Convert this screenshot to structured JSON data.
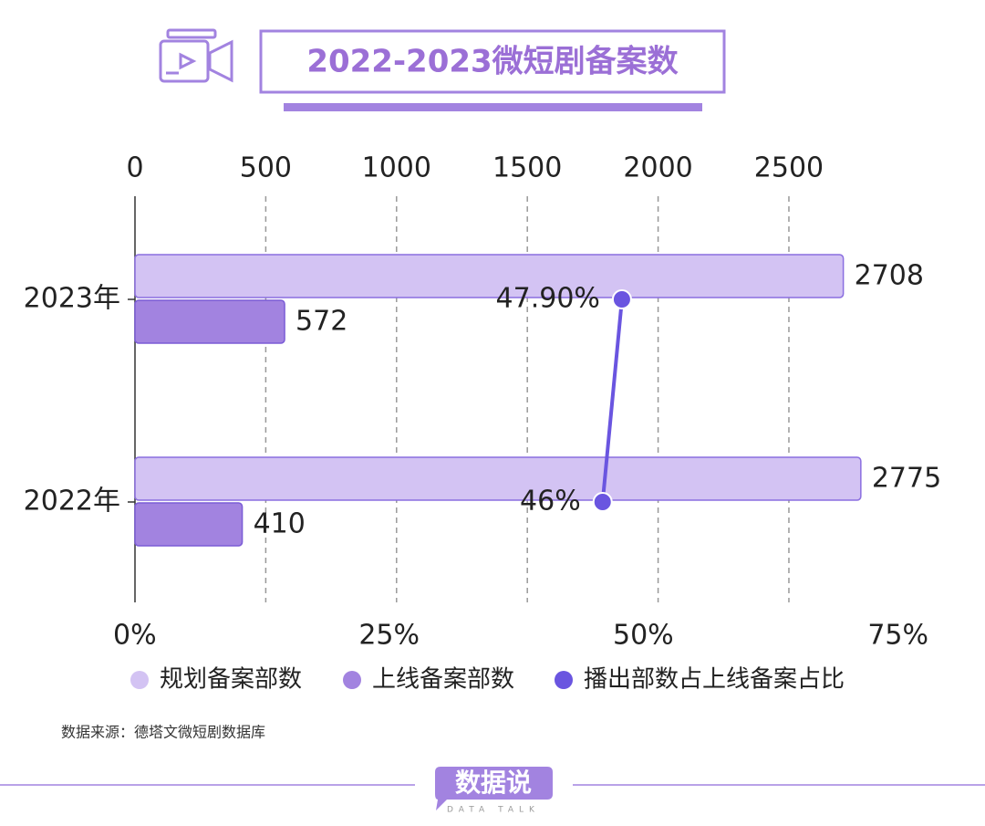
{
  "chart_data": {
    "type": "bar",
    "title": "2022-2023微短剧备案数",
    "categories": [
      "2023年",
      "2022年"
    ],
    "series": [
      {
        "name": "规划备案部数",
        "color": "#d3c3f3",
        "values": [
          2708,
          2775
        ]
      },
      {
        "name": "上线备案部数",
        "color": "#a283e0",
        "values": [
          572,
          410
        ]
      },
      {
        "name": "播出部数占上线备案占比",
        "color": "#6a55e0",
        "type": "line",
        "axis": "x2",
        "values": [
          47.9,
          46
        ],
        "value_labels": [
          "47.90%",
          "46%"
        ]
      }
    ],
    "xlim": [
      0,
      2915
    ],
    "xticks": [
      0,
      500,
      1000,
      1500,
      2000,
      2500
    ],
    "x2lim": [
      0,
      75
    ],
    "x2ticks": [
      {
        "value": 0,
        "label": "0%"
      },
      {
        "value": 25,
        "label": "25%"
      },
      {
        "value": 50,
        "label": "50%"
      },
      {
        "value": 75,
        "label": "75%"
      }
    ],
    "grid": true
  },
  "source": "数据来源：德塔文微短剧数据库",
  "brand": {
    "name": "数据说",
    "tagline": "DATA TALK"
  }
}
